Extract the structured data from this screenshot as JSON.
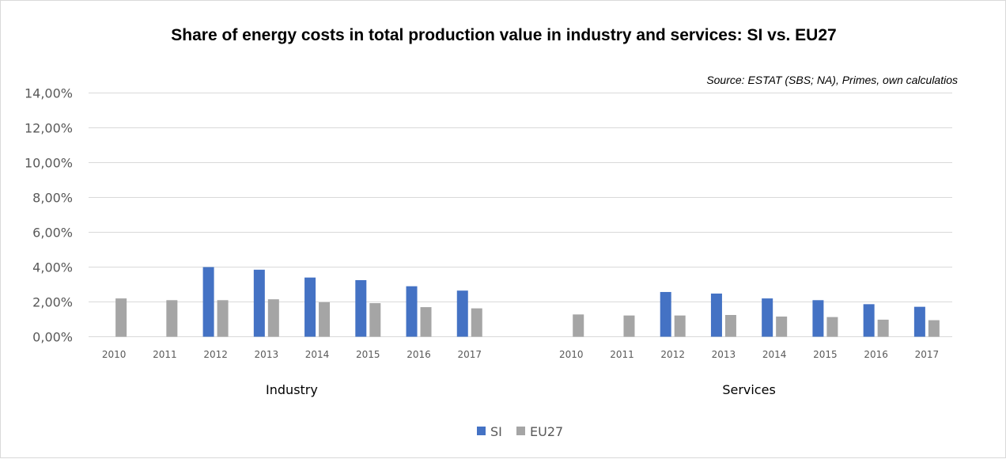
{
  "chart_data": {
    "type": "bar",
    "title": "Share of energy costs in total production value in industry and services: SI vs. EU27",
    "source_note": "Source: ESTAT (SBS; NA), Primes, own calculatios",
    "xlabel": "",
    "ylabel": "",
    "ylim": [
      0,
      14
    ],
    "y_unit": "%",
    "yticks": [
      "0,00%",
      "2,00%",
      "4,00%",
      "6,00%",
      "8,00%",
      "10,00%",
      "12,00%",
      "14,00%"
    ],
    "grid": true,
    "legend_position": "bottom",
    "groups": [
      {
        "name": "Industry",
        "categories": [
          "2010",
          "2011",
          "2012",
          "2013",
          "2014",
          "2015",
          "2016",
          "2017"
        ],
        "series": [
          {
            "name": "SI",
            "values": [
              null,
              null,
              4.0,
              3.85,
              3.4,
              3.25,
              2.9,
              2.65
            ]
          },
          {
            "name": "EU27",
            "values": [
              2.2,
              2.1,
              2.1,
              2.15,
              1.98,
              1.93,
              1.7,
              1.63
            ]
          }
        ]
      },
      {
        "name": "Services",
        "categories": [
          "2010",
          "2011",
          "2012",
          "2013",
          "2014",
          "2015",
          "2016",
          "2017"
        ],
        "series": [
          {
            "name": "SI",
            "values": [
              null,
              null,
              2.57,
              2.48,
              2.2,
              2.1,
              1.87,
              1.72
            ]
          },
          {
            "name": "EU27",
            "values": [
              1.28,
              1.22,
              1.22,
              1.25,
              1.16,
              1.13,
              0.98,
              0.95
            ]
          }
        ]
      }
    ],
    "legend": [
      {
        "name": "SI",
        "color": "#4472c4"
      },
      {
        "name": "EU27",
        "color": "#a5a5a5"
      }
    ]
  }
}
